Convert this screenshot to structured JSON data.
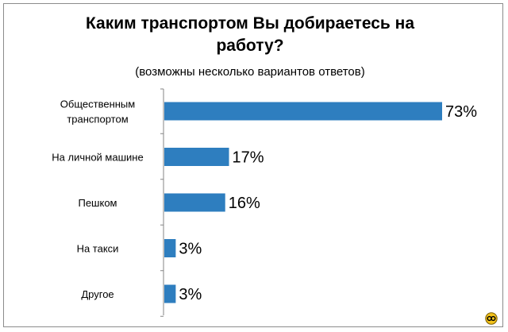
{
  "chart_data": {
    "type": "bar",
    "orientation": "horizontal",
    "title_line1": "Каким транспортом Вы добираетесь на",
    "title_line2": "работу?",
    "subtitle": "(возможны несколько вариантов ответов)",
    "categories": [
      [
        "Общественным",
        "транспортом"
      ],
      [
        "На личной машине"
      ],
      [
        "Пешком"
      ],
      [
        "На такси"
      ],
      [
        "Другое"
      ]
    ],
    "values": [
      73,
      17,
      16,
      3,
      3
    ],
    "value_labels": [
      "73%",
      "17%",
      "16%",
      "3%",
      "3%"
    ],
    "xlim": [
      0,
      73
    ],
    "grid": false,
    "legend": "none",
    "bar_color": "#2e7ebf"
  }
}
